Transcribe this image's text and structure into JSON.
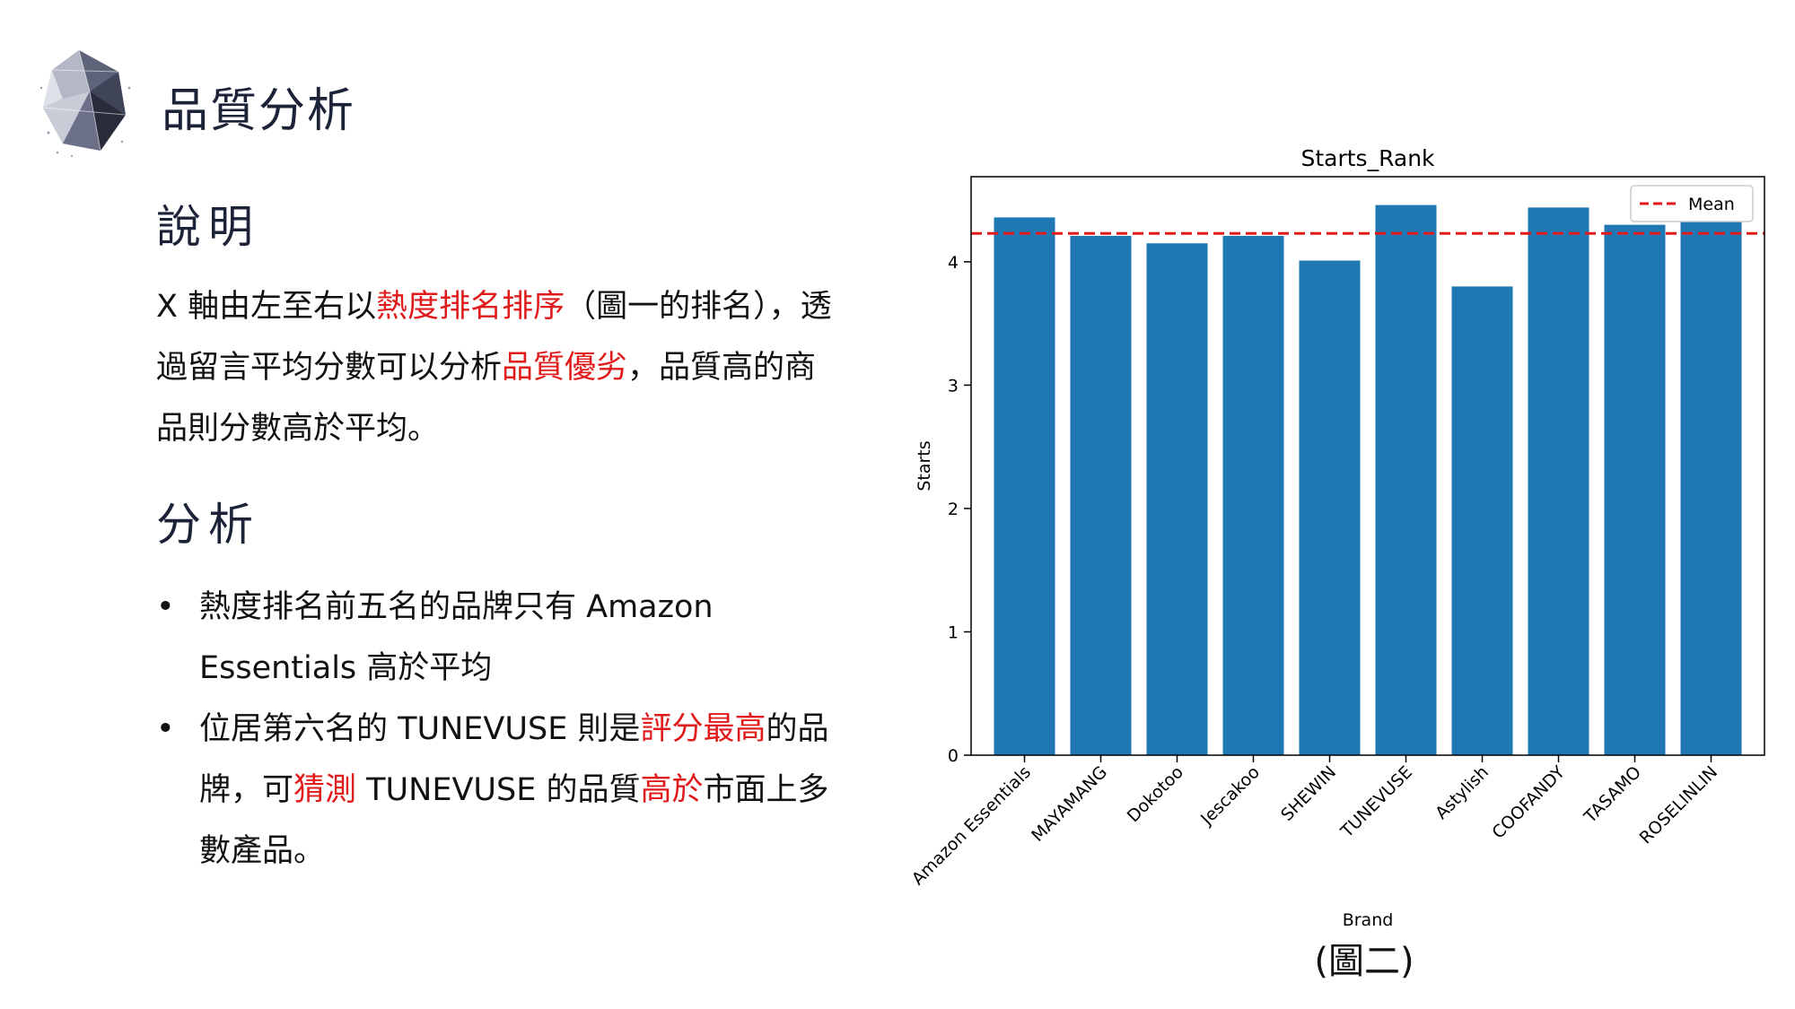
{
  "slide": {
    "title": "品質分析",
    "section_description": "說明",
    "description": {
      "p1": "X 軸由左至右以",
      "p2": "熱度排名排序",
      "p3": "（圖一的排名），透過留言平均分數可以分析",
      "p4": "品質優劣",
      "p5": "，品質高的商品則分數高於平均。"
    },
    "section_analysis": "分析",
    "bullet1": "熱度排名前五名的品牌只有 Amazon Essentials 高於平均",
    "bullet2": {
      "p1": "位居第六名的 TUNEVUSE 則是",
      "p2": "評分最高",
      "p3": "的品牌，可",
      "p4": "猜測",
      "p5": " TUNEVUSE 的品質",
      "p6": "高於",
      "p7": "市面上多數產品。"
    },
    "bullet_symbol": "•",
    "caption": "(圖二)"
  },
  "chart_data": {
    "type": "bar",
    "title": "Starts_Rank",
    "xlabel": "Brand",
    "ylabel": "Starts",
    "categories": [
      "Amazon Essentials",
      "MAYAMANG",
      "Dokotoo",
      "Jescakoo",
      "SHEWIN",
      "TUNEVUSE",
      "Astylish",
      "COOFANDY",
      "TASAMO",
      "ROSELINLIN"
    ],
    "values": [
      4.36,
      4.21,
      4.15,
      4.21,
      4.01,
      4.46,
      3.8,
      4.44,
      4.3,
      4.39
    ],
    "mean": 4.23,
    "mean_label": "Mean",
    "ylim": [
      0,
      4.69
    ],
    "yticks": [
      0,
      1,
      2,
      3,
      4
    ],
    "bar_color": "#1f77b4",
    "mean_color": "#e31a1c",
    "legend_position": "top-right",
    "grid": false
  }
}
